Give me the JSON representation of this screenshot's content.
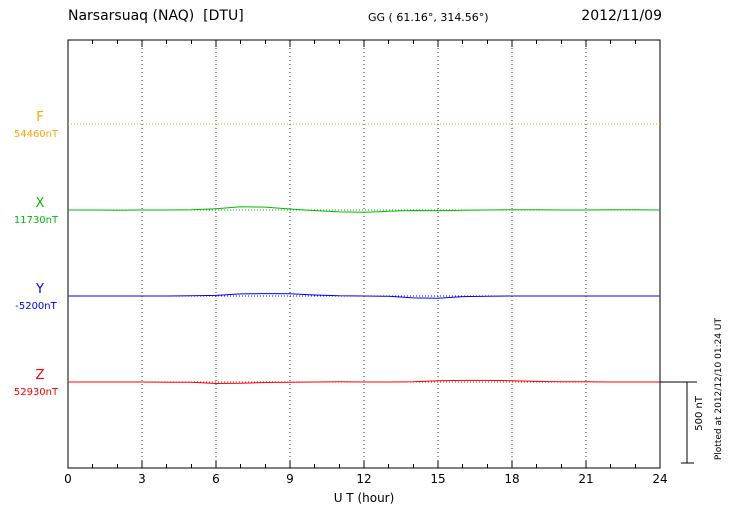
{
  "header": {
    "station_title": "Narsarsuaq (NAQ)  [DTU]",
    "gg_coords": "GG ( 61.16°, 314.56°)",
    "date": "2012/11/09"
  },
  "footer": {
    "plotted_at": "Plotted at 2012/12/10 01:24 UT"
  },
  "scale_bar": {
    "label": "500 nT",
    "value_nT": 500
  },
  "chart_data": {
    "type": "line",
    "title": "Narsarsuaq (NAQ)  [DTU]",
    "subtitle": "2012/11/09",
    "xlabel": "U T (hour)",
    "ylabel": "",
    "x_range": [
      0,
      24
    ],
    "x_ticks": [
      0,
      3,
      6,
      9,
      12,
      15,
      18,
      21,
      24
    ],
    "grid": "vertical-dotted",
    "scale_bar_nT": 500,
    "x_hours": [
      0,
      1,
      2,
      3,
      4,
      5,
      6,
      7,
      8,
      9,
      10,
      11,
      12,
      13,
      14,
      15,
      16,
      17,
      18,
      19,
      20,
      21,
      22,
      23,
      24
    ],
    "series": [
      {
        "name": "F",
        "baseline_label": "54460nT",
        "baseline_nT": 54460,
        "color": "#ffa500",
        "deviation_nT": [
          0,
          0,
          0,
          0,
          0,
          0,
          0,
          0,
          0,
          0,
          0,
          0,
          0,
          0,
          0,
          0,
          0,
          0,
          0,
          0,
          0,
          0,
          0,
          0,
          0
        ]
      },
      {
        "name": "X",
        "baseline_label": "11730nT",
        "baseline_nT": 11730,
        "color": "#00bb00",
        "deviation_nT": [
          0,
          0,
          -2,
          0,
          0,
          2,
          8,
          20,
          18,
          6,
          -4,
          -12,
          -14,
          -8,
          -3,
          -5,
          -2,
          0,
          2,
          2,
          0,
          0,
          2,
          2,
          0
        ]
      },
      {
        "name": "Y",
        "baseline_label": "-5200nT",
        "baseline_nT": -5200,
        "color": "#0000ff",
        "deviation_nT": [
          0,
          0,
          0,
          0,
          0,
          1,
          4,
          13,
          15,
          14,
          6,
          1,
          0,
          -2,
          -12,
          -14,
          -4,
          -1,
          0,
          0,
          0,
          0,
          0,
          0,
          0
        ]
      },
      {
        "name": "Z",
        "baseline_label": "52930nT",
        "baseline_nT": 52930,
        "color": "#ff0000",
        "deviation_nT": [
          0,
          0,
          0,
          0,
          -1,
          -2,
          -9,
          -8,
          -3,
          -1,
          0,
          1,
          0,
          0,
          2,
          8,
          10,
          10,
          8,
          4,
          2,
          1,
          0,
          0,
          0
        ]
      }
    ]
  }
}
